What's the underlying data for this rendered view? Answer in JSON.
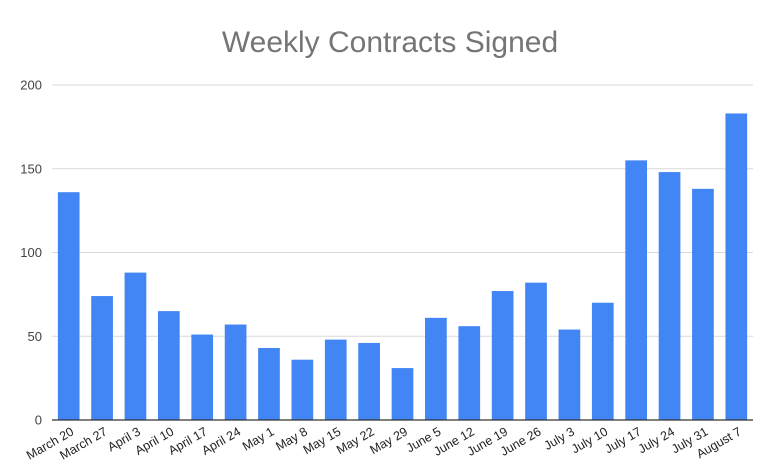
{
  "chart_data": {
    "type": "bar",
    "title": "Weekly Contracts Signed",
    "xlabel": "",
    "ylabel": "",
    "ylim": [
      0,
      200
    ],
    "yticks": [
      0,
      50,
      100,
      150,
      200
    ],
    "grid": true,
    "legend": "none",
    "bar_color": "#4285f4",
    "categories": [
      "March 20",
      "March 27",
      "April 3",
      "April 10",
      "April 17",
      "April 24",
      "May 1",
      "May 8",
      "May 15",
      "May 22",
      "May 29",
      "June 5",
      "June 12",
      "June 19",
      "June 26",
      "July 3",
      "July 10",
      "July 17",
      "July 24",
      "July 31",
      "August 7"
    ],
    "values": [
      136,
      74,
      88,
      65,
      51,
      57,
      43,
      36,
      48,
      46,
      31,
      61,
      56,
      77,
      82,
      54,
      70,
      155,
      148,
      138,
      183
    ]
  }
}
